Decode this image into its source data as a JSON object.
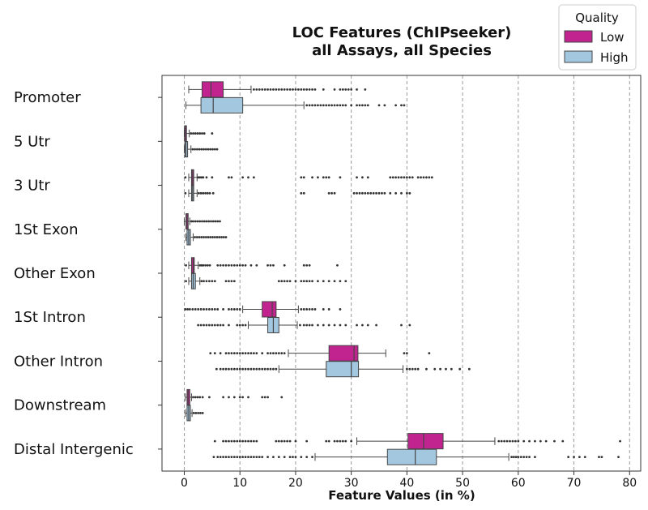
{
  "chart_data": {
    "type": "boxplot",
    "orientation": "horizontal",
    "title": "LOC Features (ChIPseeker)\nall Assays, all Species",
    "xlabel": "Feature Values (in %)",
    "xlim": [
      -4,
      82
    ],
    "xticks": [
      0,
      10,
      20,
      30,
      40,
      50,
      60,
      70,
      80
    ],
    "grid": "vertical-dashed",
    "legend": {
      "title": "Quality",
      "placement": "top-right",
      "entries": [
        {
          "label": "Low",
          "color": "#c2248f"
        },
        {
          "label": "High",
          "color": "#a4c7e0"
        }
      ]
    },
    "categories": [
      "Promoter",
      "5 Utr",
      "3 Utr",
      "1St Exon",
      "Other Exon",
      "1St Intron",
      "Other Intron",
      "Downstream",
      "Distal Intergenic"
    ],
    "series": [
      {
        "name": "Low",
        "color": "#c2248f",
        "boxes": [
          {
            "whisker_low": 0.8,
            "q1": 3.2,
            "median": 4.8,
            "q3": 7.0,
            "whisker_high": 12.0,
            "outliers": [
              12.5,
              13,
              13.5,
              14,
              14.5,
              15,
              15.5,
              16,
              16.5,
              17,
              17.5,
              18,
              18.5,
              19,
              19.5,
              20,
              20.5,
              21,
              21.5,
              22,
              22.5,
              23,
              23.5,
              25,
              27,
              28,
              28.5,
              29,
              29.5,
              30,
              31,
              32.5
            ]
          },
          {
            "whisker_low": 0.0,
            "q1": 0.05,
            "median": 0.2,
            "q3": 0.4,
            "whisker_high": 0.9,
            "outliers": [
              1.2,
              1.6,
              2.0,
              2.4,
              2.8,
              3.2,
              3.6,
              5.0
            ]
          },
          {
            "whisker_low": 0.8,
            "q1": 1.3,
            "median": 1.5,
            "q3": 1.7,
            "whisker_high": 2.3,
            "outliers": [
              0.2,
              2.5,
              2.8,
              3.1,
              3.4,
              4,
              5,
              8,
              8.5,
              10.5,
              11.5,
              12.5,
              21,
              21.5,
              23,
              24,
              25,
              25.5,
              26,
              28,
              31,
              32,
              33,
              37,
              37.5,
              38,
              38.5,
              39,
              39.5,
              40,
              40.5,
              41,
              42,
              42.5,
              43,
              43.5,
              44,
              44.5
            ]
          },
          {
            "whisker_low": 0.0,
            "q1": 0.3,
            "median": 0.5,
            "q3": 0.7,
            "whisker_high": 1.0,
            "outliers": [
              1.3,
              1.6,
              2,
              2.4,
              2.8,
              3.2,
              3.6,
              4,
              4.4,
              4.8,
              5.2,
              5.6,
              6,
              6.4
            ]
          },
          {
            "whisker_low": 0.8,
            "q1": 1.3,
            "median": 1.6,
            "q3": 1.8,
            "whisker_high": 2.5,
            "outliers": [
              0.3,
              2.8,
              3.1,
              3.4,
              3.8,
              4.2,
              4.6,
              6,
              6.5,
              7,
              7.5,
              8,
              8.5,
              9,
              9.5,
              10,
              10.5,
              11,
              12,
              13,
              15,
              15.5,
              16,
              18,
              21.5,
              22,
              22.5,
              27.5
            ]
          },
          {
            "whisker_low": 10.5,
            "q1": 14.0,
            "median": 15.8,
            "q3": 16.5,
            "whisker_high": 20.5,
            "outliers": [
              0.2,
              0.6,
              1,
              1.5,
              2,
              2.5,
              3,
              3.5,
              4,
              4.5,
              5,
              5.5,
              6,
              7,
              8,
              8.5,
              9,
              9.5,
              10,
              21,
              21.5,
              22,
              22.5,
              23,
              23.5,
              25,
              26,
              28
            ]
          },
          {
            "whisker_low": 18.7,
            "q1": 26.0,
            "median": 30.5,
            "q3": 31.2,
            "whisker_high": 36.2,
            "outliers": [
              4.7,
              5.5,
              6.5,
              7.5,
              8,
              8.5,
              9,
              9.5,
              10,
              10.5,
              11,
              11.5,
              12,
              12.5,
              13,
              14,
              15,
              15.5,
              16,
              16.5,
              17,
              17.5,
              18,
              39.5,
              40,
              44
            ]
          },
          {
            "whisker_low": 0.2,
            "q1": 0.5,
            "median": 0.7,
            "q3": 1.0,
            "whisker_high": 1.3,
            "outliers": [
              1.6,
              2,
              2.4,
              2.8,
              3.3,
              4.5,
              7,
              8,
              9,
              10,
              10.5,
              11.5,
              14,
              14.5,
              15,
              17.5
            ]
          },
          {
            "whisker_low": 31.0,
            "q1": 40.2,
            "median": 43.0,
            "q3": 46.5,
            "whisker_high": 55.8,
            "outliers": [
              5.5,
              7,
              7.5,
              8,
              8.5,
              9,
              9.5,
              10,
              10.5,
              11,
              11.5,
              12,
              12.5,
              13,
              16.5,
              17,
              17.5,
              18,
              18.5,
              19,
              20,
              22,
              25.5,
              26,
              27,
              27.5,
              28,
              28.5,
              29,
              30,
              56.5,
              57,
              57.5,
              58,
              58.5,
              59,
              59.5,
              60,
              61,
              62,
              63,
              64,
              65,
              66.5,
              68,
              78.3
            ]
          }
        ]
      },
      {
        "name": "High",
        "color": "#a4c7e0",
        "boxes": [
          {
            "whisker_low": 0.3,
            "q1": 3.0,
            "median": 5.2,
            "q3": 10.5,
            "whisker_high": 21.5,
            "outliers": [
              22,
              22.5,
              23,
              23.5,
              24,
              24.5,
              25,
              25.5,
              26,
              26.5,
              27,
              27.5,
              28,
              28.5,
              29,
              30,
              31,
              31.5,
              32,
              32.5,
              33,
              35,
              36,
              38,
              39,
              39.5
            ]
          },
          {
            "whisker_low": 0.0,
            "q1": 0.1,
            "median": 0.3,
            "q3": 0.6,
            "whisker_high": 1.2,
            "outliers": [
              1.5,
              1.9,
              2.3,
              2.7,
              3.1,
              3.5,
              3.9,
              4.3,
              4.7,
              5.1,
              5.5,
              5.9
            ]
          },
          {
            "whisker_low": 0.8,
            "q1": 1.3,
            "median": 1.5,
            "q3": 1.7,
            "whisker_high": 2.3,
            "outliers": [
              0.2,
              2.6,
              3,
              3.4,
              3.8,
              4.2,
              4.6,
              5.2,
              21,
              21.5,
              26,
              26.5,
              27,
              30.5,
              31,
              31.5,
              32,
              32.5,
              33,
              33.5,
              34,
              34.5,
              35,
              35.5,
              36,
              37,
              38,
              39,
              40,
              40.5
            ]
          },
          {
            "whisker_low": 0.3,
            "q1": 0.5,
            "median": 0.8,
            "q3": 1.1,
            "whisker_high": 1.6,
            "outliers": [
              1.9,
              2.3,
              2.7,
              3.1,
              3.5,
              3.9,
              4.3,
              4.7,
              5.1,
              5.5,
              5.9,
              6.3,
              6.7,
              7.1,
              7.5
            ]
          },
          {
            "whisker_low": 0.8,
            "q1": 1.3,
            "median": 1.6,
            "q3": 2.0,
            "whisker_high": 2.8,
            "outliers": [
              0.3,
              3.1,
              3.5,
              4,
              4.5,
              5,
              5.5,
              7.5,
              8,
              8.5,
              9,
              17,
              17.5,
              18,
              18.5,
              19,
              20,
              21,
              21.5,
              22,
              22.5,
              23,
              24,
              25,
              26,
              27,
              28,
              29
            ]
          },
          {
            "whisker_low": 11.5,
            "q1": 15.0,
            "median": 16.0,
            "q3": 17.0,
            "whisker_high": 20.3,
            "outliers": [
              2.5,
              3,
              3.5,
              4,
              4.5,
              5,
              5.5,
              6,
              6.5,
              7,
              8,
              9.5,
              10,
              10.5,
              11,
              20.8,
              21.5,
              22,
              22.5,
              23,
              24,
              25,
              26,
              27,
              28,
              29,
              31,
              32,
              33,
              34.5,
              39,
              40.5
            ]
          },
          {
            "whisker_low": 17.0,
            "q1": 25.5,
            "median": 30.0,
            "q3": 31.3,
            "whisker_high": 39.3,
            "outliers": [
              5.8,
              6.5,
              7,
              7.5,
              8,
              8.5,
              9,
              9.5,
              10,
              10.5,
              11,
              11.5,
              12,
              12.5,
              13,
              13.5,
              14,
              14.5,
              15,
              15.5,
              16,
              16.5,
              40,
              40.5,
              41,
              41.5,
              42,
              43.5,
              45,
              46,
              47,
              48,
              49.5,
              51.2
            ]
          },
          {
            "whisker_low": 0.2,
            "q1": 0.5,
            "median": 0.8,
            "q3": 1.1,
            "whisker_high": 1.4,
            "outliers": [
              1.7,
              2.1,
              2.5,
              2.9,
              3.3
            ]
          },
          {
            "whisker_low": 23.5,
            "q1": 36.5,
            "median": 41.5,
            "q3": 45.3,
            "whisker_high": 58.3,
            "outliers": [
              5.3,
              6,
              6.5,
              7,
              7.5,
              8,
              8.5,
              9,
              9.5,
              10,
              10.5,
              11,
              11.5,
              12,
              12.5,
              13,
              13.5,
              14,
              15,
              16,
              17,
              18,
              19,
              19.5,
              20,
              21,
              22,
              23,
              58.8,
              59.2,
              59.6,
              60,
              60.5,
              61,
              61.5,
              62,
              63,
              69,
              70,
              71,
              72,
              74.5,
              75,
              78
            ]
          }
        ]
      }
    ]
  }
}
